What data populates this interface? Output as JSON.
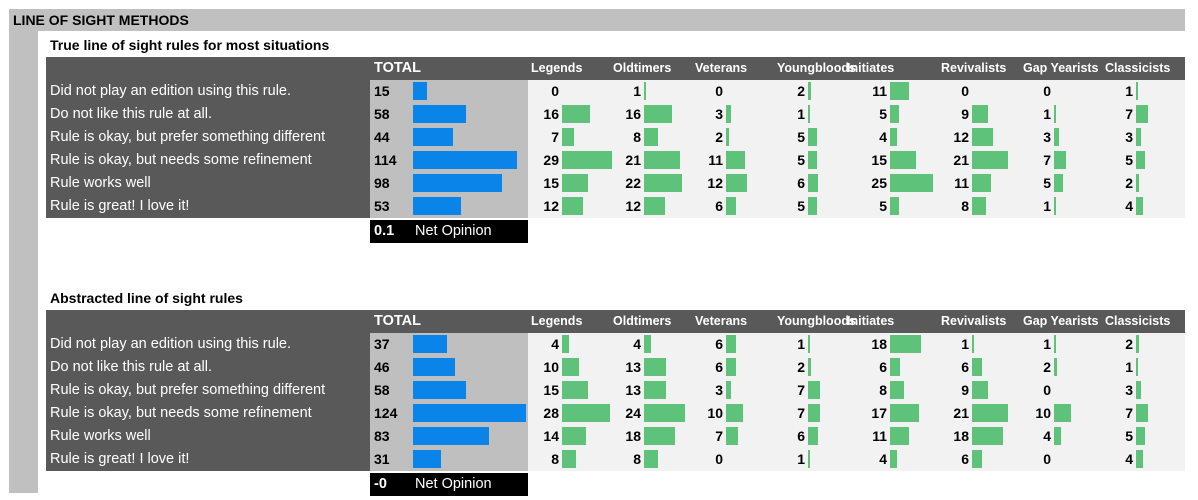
{
  "page_title": "LINE OF SIGHT METHODS",
  "total_label": "TOTAL",
  "net_label": "Net Opinion",
  "groups": [
    "Legends",
    "Oldtimers",
    "Veterans",
    "Youngbloods",
    "Initiates",
    "Revivalists",
    "Gap Yearists",
    "Classicists"
  ],
  "colors": {
    "total_bar": "#0a84e8",
    "group_bar": "#5fc27a",
    "label_bg": "#595959",
    "total_bg": "#bfbfbf",
    "group_bg": "#f2f2f2"
  },
  "chart_data": [
    {
      "type": "table",
      "title": "True line of sight rules for most situations",
      "categories": [
        "Did not play an edition using this rule.",
        "Do not like this rule at all.",
        "Rule is okay, but prefer something different",
        "Rule is okay, but needs some refinement",
        "Rule works well",
        "Rule is great! I love it!"
      ],
      "totals": [
        15,
        58,
        44,
        114,
        98,
        53
      ],
      "net_opinion": "0.1",
      "series": [
        {
          "name": "Legends",
          "values": [
            0,
            16,
            7,
            29,
            15,
            12
          ]
        },
        {
          "name": "Oldtimers",
          "values": [
            1,
            16,
            8,
            21,
            22,
            12
          ]
        },
        {
          "name": "Veterans",
          "values": [
            0,
            3,
            2,
            11,
            12,
            6
          ]
        },
        {
          "name": "Youngbloods",
          "values": [
            2,
            1,
            5,
            5,
            6,
            5
          ]
        },
        {
          "name": "Initiates",
          "values": [
            11,
            5,
            4,
            15,
            25,
            5
          ]
        },
        {
          "name": "Revivalists",
          "values": [
            0,
            9,
            12,
            21,
            11,
            8
          ]
        },
        {
          "name": "Gap Yearists",
          "values": [
            0,
            1,
            3,
            7,
            5,
            1
          ]
        },
        {
          "name": "Classicists",
          "values": [
            1,
            7,
            3,
            5,
            2,
            4
          ]
        }
      ]
    },
    {
      "type": "table",
      "title": "Abstracted line of sight rules",
      "categories": [
        "Did not play an edition using this rule.",
        "Do not like this rule at all.",
        "Rule is okay, but prefer something different",
        "Rule is okay, but needs some refinement",
        "Rule works well",
        "Rule is great! I love it!"
      ],
      "totals": [
        37,
        46,
        58,
        124,
        83,
        31
      ],
      "net_opinion": "-0",
      "series": [
        {
          "name": "Legends",
          "values": [
            4,
            10,
            15,
            28,
            14,
            8
          ]
        },
        {
          "name": "Oldtimers",
          "values": [
            4,
            13,
            13,
            24,
            18,
            8
          ]
        },
        {
          "name": "Veterans",
          "values": [
            6,
            6,
            3,
            10,
            7,
            0
          ]
        },
        {
          "name": "Youngbloods",
          "values": [
            1,
            2,
            7,
            7,
            6,
            1
          ]
        },
        {
          "name": "Initiates",
          "values": [
            18,
            6,
            8,
            17,
            11,
            4
          ]
        },
        {
          "name": "Revivalists",
          "values": [
            1,
            6,
            9,
            21,
            18,
            6
          ]
        },
        {
          "name": "Gap Yearists",
          "values": [
            1,
            2,
            0,
            10,
            4,
            0
          ]
        },
        {
          "name": "Classicists",
          "values": [
            2,
            1,
            3,
            7,
            5,
            4
          ]
        }
      ]
    }
  ]
}
